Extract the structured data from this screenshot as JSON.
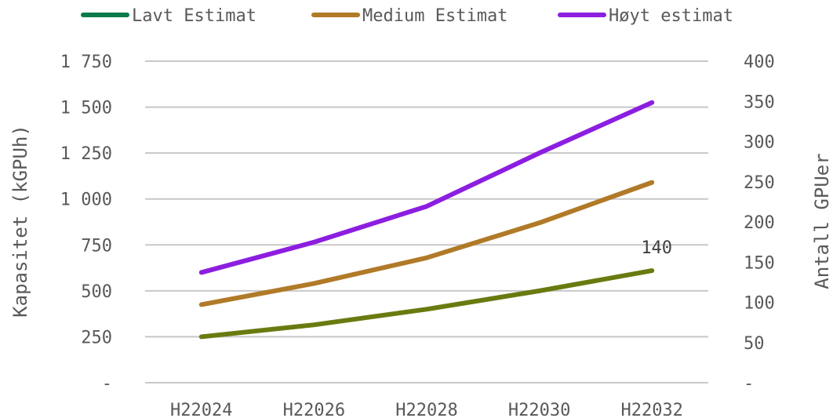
{
  "chart_data": {
    "type": "line",
    "categories": [
      "H22024",
      "H22026",
      "H22028",
      "H22030",
      "H22032"
    ],
    "series": [
      {
        "name": "Lavt Estimat",
        "legend_color": "#0e7a4a",
        "line_color": "#6b7a10",
        "axis": "left",
        "values": [
          250,
          315,
          400,
          500,
          610
        ]
      },
      {
        "name": "Medium Estimat",
        "legend_color": "#b07a28",
        "line_color": "#b07a28",
        "axis": "left",
        "values": [
          425,
          540,
          680,
          870,
          1090
        ]
      },
      {
        "name": "Høyt estimat",
        "legend_color": "#8c1ee0",
        "line_color": "#8c1ee0",
        "axis": "left",
        "values": [
          600,
          765,
          960,
          1250,
          1525
        ]
      }
    ],
    "ylabel_left": "Kapasitet (kGPUh)",
    "ylabel_right": "Antall GPUer",
    "y_left": {
      "min": 0,
      "max": 1750,
      "ticks": [
        0,
        250,
        500,
        750,
        1000,
        1250,
        1500,
        1750
      ],
      "tick_labels": [
        "-",
        "250",
        "500",
        "750",
        "1 000",
        "1 250",
        "1 500",
        "1 750"
      ]
    },
    "y_right": {
      "min": 0,
      "max": 400,
      "ticks": [
        0,
        50,
        100,
        150,
        200,
        250,
        300,
        350,
        400
      ],
      "tick_labels": [
        "-",
        "50",
        "100",
        "150",
        "200",
        "250",
        "300",
        "350",
        "400"
      ]
    },
    "annotations": [
      {
        "series": 0,
        "index": 4,
        "text": "140"
      }
    ],
    "grid": true,
    "grid_color": "#c8c8c8",
    "legend_position": "top"
  }
}
